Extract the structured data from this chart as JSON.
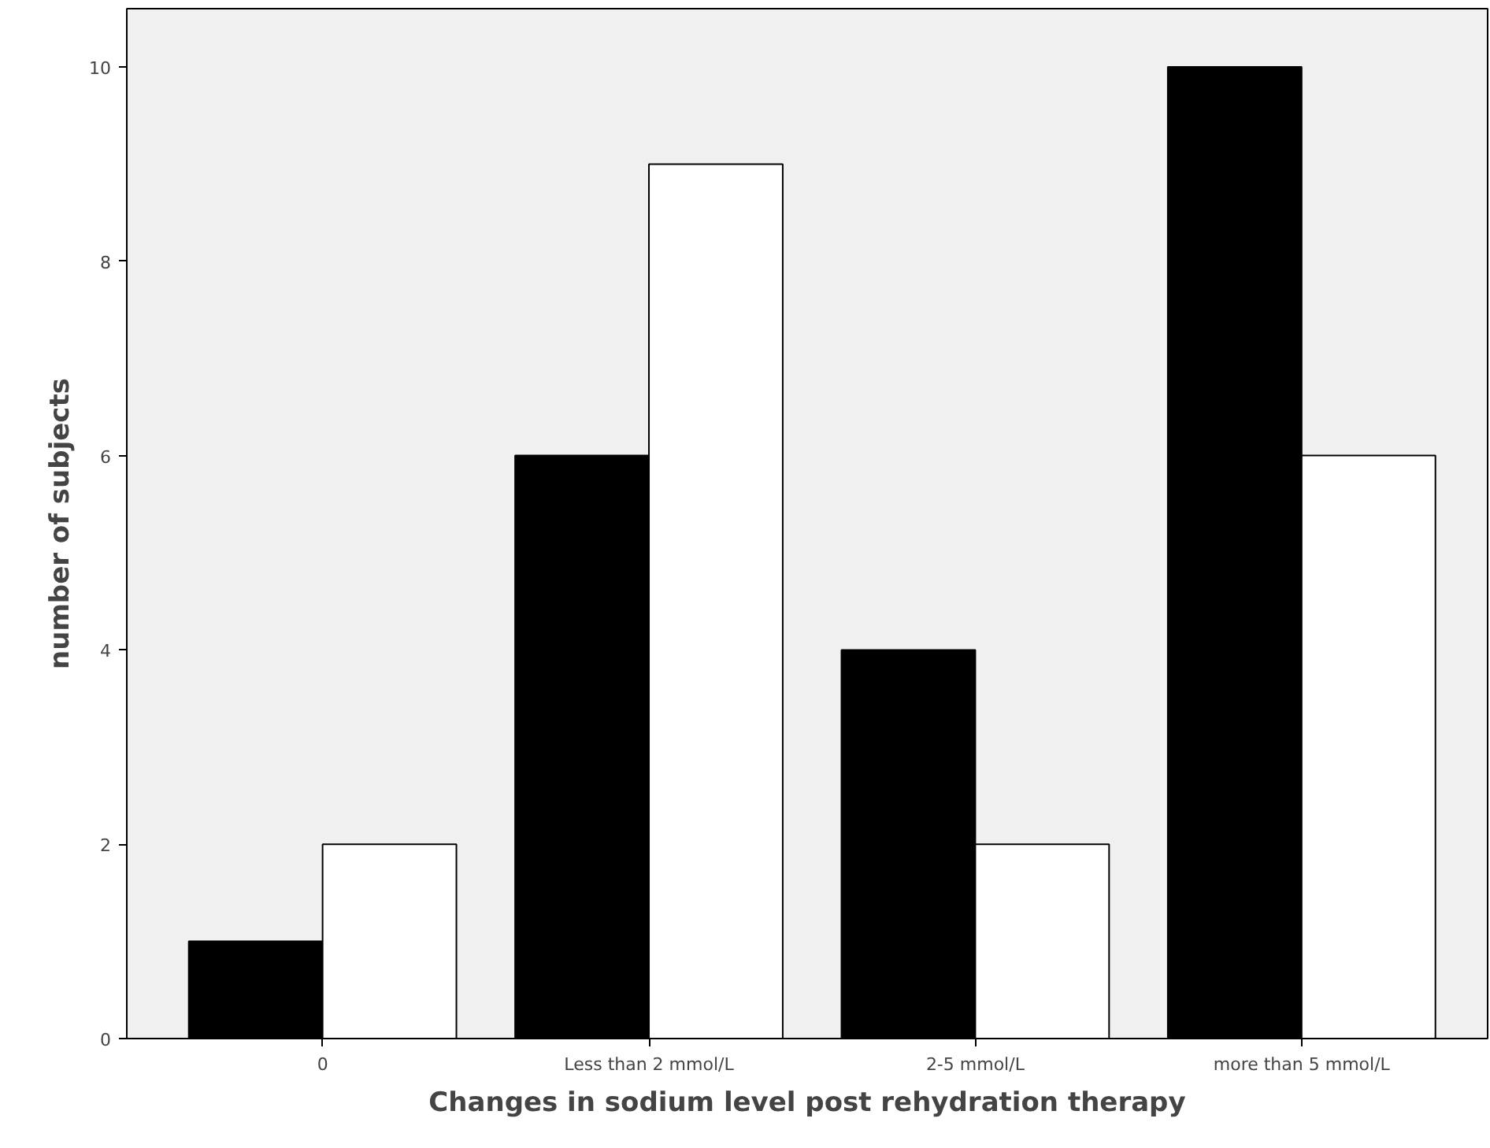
{
  "chart_data": {
    "type": "bar",
    "xlabel": "Changes in sodium level post rehydration therapy",
    "ylabel": "number of subjects",
    "categories": [
      "0",
      "Less than 2 mmol/L",
      "2-5 mmol/L",
      "more than 5 mmol/L"
    ],
    "series": [
      {
        "color": "#000000",
        "values": [
          1,
          6,
          4,
          10
        ]
      },
      {
        "color": "#ffffff",
        "values": [
          2,
          9,
          2,
          6
        ]
      }
    ],
    "ylim": [
      0,
      10.6
    ],
    "yticks": [
      0,
      2,
      4,
      6,
      8,
      10
    ],
    "grid": false
  }
}
